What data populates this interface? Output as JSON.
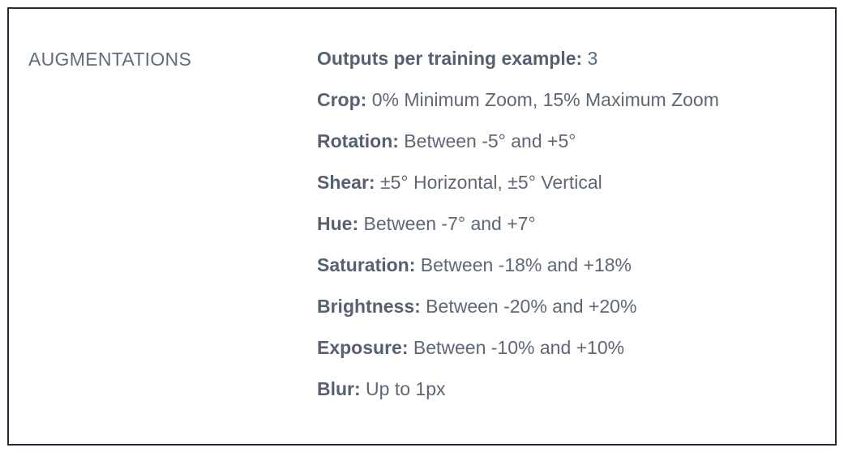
{
  "section": {
    "label": "AUGMENTATIONS"
  },
  "augmentations": [
    {
      "key": "Outputs per training example:",
      "value": " 3"
    },
    {
      "key": "Crop:",
      "value": " 0% Minimum Zoom, 15% Maximum Zoom"
    },
    {
      "key": "Rotation:",
      "value": " Between -5° and +5°"
    },
    {
      "key": "Shear:",
      "value": " ±5° Horizontal, ±5° Vertical"
    },
    {
      "key": "Hue:",
      "value": " Between -7° and +7°"
    },
    {
      "key": "Saturation:",
      "value": " Between -18% and +18%"
    },
    {
      "key": "Brightness:",
      "value": " Between -20% and +20%"
    },
    {
      "key": "Exposure:",
      "value": " Between -10% and +10%"
    },
    {
      "key": "Blur:",
      "value": " Up to 1px"
    }
  ],
  "colors": {
    "border": "#1e2a3c",
    "label_text": "#616b78",
    "value_text": "#5e6774"
  }
}
